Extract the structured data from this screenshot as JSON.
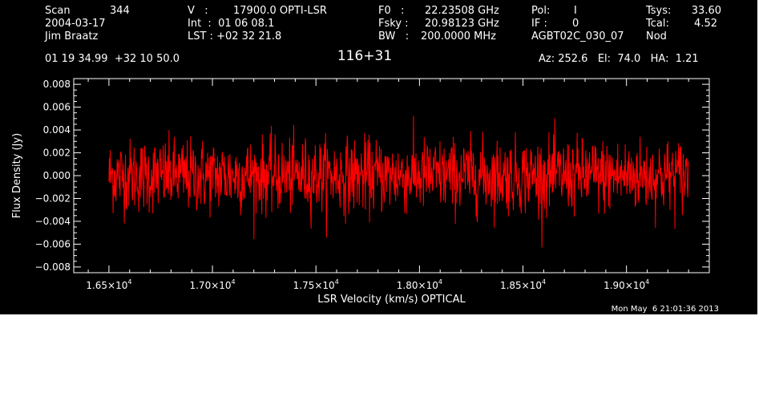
{
  "header": {
    "scan_label": "Scan",
    "scan_value": "344",
    "date": "2004-03-17",
    "observer": "Jim Braatz",
    "coords": "01 19 34.99  +32 10 50.0",
    "v_label": "V   :",
    "v_value": "17900.0 OPTI-LSR",
    "int_line": "Int  :  01 06 08.1",
    "lst_line": "LST : +02 32 21.8",
    "f0_label": "F0   :",
    "f0_value": "22.23508 GHz",
    "fsky_label": "Fsky :",
    "fsky_value": "20.98123 GHz",
    "bw_label": "BW   :",
    "bw_value": "200.0000 MHz",
    "pol_label": "Pol:",
    "pol_value": "I",
    "if_label": "IF :",
    "if_value": "0",
    "session": "AGBT02C_030_07",
    "tsys_label": "Tsys:",
    "tsys_value": "33.60",
    "tcal_label": "Tcal:",
    "tcal_value": "4.52",
    "mode": "Nod",
    "azelha": "Az: 252.6   El:  74.0   HA:  1.21",
    "timestamp": "Mon May  6 21:01:36 2013"
  },
  "colors": {
    "background": "#000000",
    "axes": "#ffffff",
    "trace": "#ff0000"
  },
  "chart_data": {
    "type": "line",
    "title": "116+31",
    "xlabel": "LSR Velocity (km/s) OPTICAL",
    "ylabel": "Flux Density (Jy)",
    "xlim": [
      16330,
      19400
    ],
    "ylim": [
      -0.0085,
      0.0085
    ],
    "x_ticks": [
      16500,
      17000,
      17500,
      18000,
      18500,
      19000
    ],
    "x_tick_labels": [
      {
        "mantissa": "1.65×10",
        "exp": "4"
      },
      {
        "mantissa": "1.70×10",
        "exp": "4"
      },
      {
        "mantissa": "1.75×10",
        "exp": "4"
      },
      {
        "mantissa": "1.80×10",
        "exp": "4"
      },
      {
        "mantissa": "1.85×10",
        "exp": "4"
      },
      {
        "mantissa": "1.90×10",
        "exp": "4"
      }
    ],
    "y_ticks": [
      -0.008,
      -0.006,
      -0.004,
      -0.002,
      0.0,
      0.002,
      0.004,
      0.006,
      0.008
    ],
    "y_tick_labels": [
      "−0.008",
      "−0.006",
      "−0.004",
      "−0.002",
      "0.000",
      "0.002",
      "0.004",
      "0.006",
      "0.008"
    ],
    "grid": false,
    "series": [
      {
        "x_start": 16500,
        "x_end": 19300,
        "rms": 0.0016,
        "y_min": -0.0063,
        "y_max": 0.0063,
        "n_points": 1400,
        "style": "noise"
      }
    ]
  }
}
